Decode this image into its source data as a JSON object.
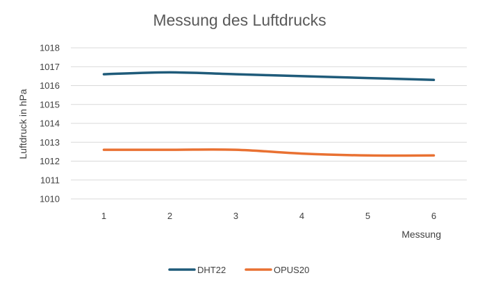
{
  "chart_data": {
    "type": "line",
    "title": "Messung des Luftdrucks",
    "xlabel": "Messung",
    "ylabel": "Luftdruck in hPa",
    "categories": [
      "1",
      "2",
      "3",
      "4",
      "5",
      "6"
    ],
    "y_ticks": [
      "1010",
      "1011",
      "1012",
      "1013",
      "1014",
      "1015",
      "1016",
      "1017",
      "1018"
    ],
    "ylim": [
      1010,
      1018
    ],
    "grid": true,
    "legend_position": "bottom",
    "series": [
      {
        "name": "DHT22",
        "color": "#1f5b7a",
        "values": [
          1016.6,
          1016.7,
          1016.6,
          1016.5,
          1016.4,
          1016.3
        ]
      },
      {
        "name": "OPUS20",
        "color": "#e97132",
        "values": [
          1012.6,
          1012.6,
          1012.6,
          1012.4,
          1012.3,
          1012.3
        ]
      }
    ]
  }
}
